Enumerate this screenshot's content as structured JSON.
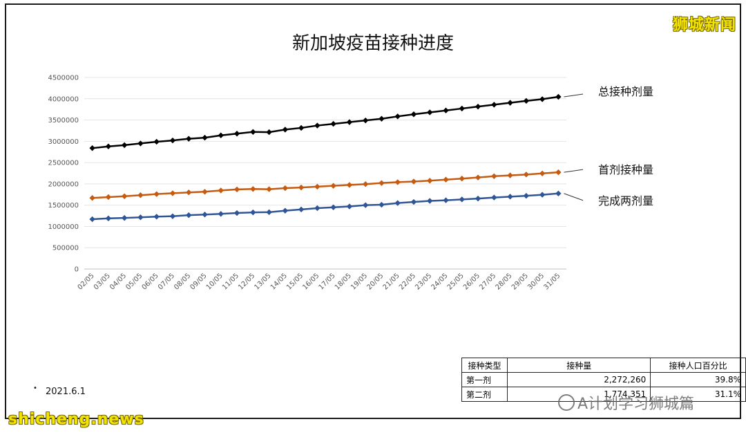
{
  "watermark_top": "狮城新闻",
  "watermark_bottom_left": "shicheng.news",
  "watermark_bottom_right": "A计划学习狮城篇",
  "date_note": "2021.6.1",
  "chart_data": {
    "type": "line",
    "title": "新加坡疫苗接种进度",
    "xlabel": "",
    "ylabel": "",
    "ylim": [
      0,
      4500000
    ],
    "yticks": [
      0,
      500000,
      1000000,
      1500000,
      2000000,
      2500000,
      3000000,
      3500000,
      4000000,
      4500000
    ],
    "grid": true,
    "categories": [
      "02/05",
      "03/05",
      "04/05",
      "05/05",
      "06/05",
      "07/05",
      "08/05",
      "09/05",
      "10/05",
      "11/05",
      "12/05",
      "13/05",
      "14/05",
      "15/05",
      "16/05",
      "17/05",
      "18/05",
      "19/05",
      "20/05",
      "21/05",
      "22/05",
      "23/05",
      "24/05",
      "25/05",
      "26/05",
      "27/05",
      "28/05",
      "29/05",
      "30/05",
      "31/05"
    ],
    "series": [
      {
        "name": "总接种剂量",
        "color": "#000000",
        "values": [
          2840000,
          2880000,
          2910000,
          2950000,
          2990000,
          3020000,
          3060000,
          3085000,
          3140000,
          3180000,
          3220000,
          3215000,
          3275000,
          3315000,
          3370000,
          3410000,
          3450000,
          3490000,
          3530000,
          3585000,
          3635000,
          3680000,
          3725000,
          3770000,
          3815000,
          3860000,
          3905000,
          3950000,
          3990000,
          4045000
        ]
      },
      {
        "name": "首剂接种量",
        "color": "#c55a11",
        "values": [
          1670000,
          1690000,
          1710000,
          1735000,
          1760000,
          1780000,
          1800000,
          1815000,
          1845000,
          1870000,
          1880000,
          1875000,
          1900000,
          1915000,
          1935000,
          1955000,
          1975000,
          1995000,
          2020000,
          2040000,
          2055000,
          2075000,
          2100000,
          2125000,
          2150000,
          2180000,
          2200000,
          2220000,
          2245000,
          2272260
        ]
      },
      {
        "name": "完成两剂量",
        "color": "#2f5597",
        "values": [
          1170000,
          1190000,
          1200000,
          1215000,
          1230000,
          1240000,
          1265000,
          1280000,
          1295000,
          1315000,
          1330000,
          1335000,
          1370000,
          1400000,
          1430000,
          1450000,
          1470000,
          1500000,
          1510000,
          1550000,
          1575000,
          1600000,
          1615000,
          1635000,
          1655000,
          1680000,
          1700000,
          1720000,
          1745000,
          1774351
        ]
      }
    ]
  },
  "table": {
    "headers": [
      "接种类型",
      "接种量",
      "接种人口百分比"
    ],
    "rows": [
      [
        "第一剂",
        "2,272,260",
        "39.8%"
      ],
      [
        "第二剂",
        "1,774,351",
        "31.1%"
      ]
    ]
  }
}
